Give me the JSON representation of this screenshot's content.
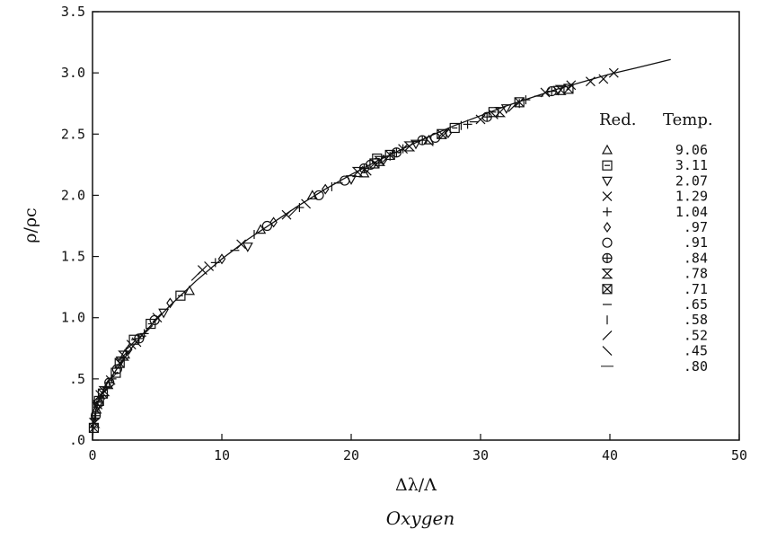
{
  "chart_data": {
    "type": "scatter",
    "title": "",
    "caption": "Oxygen",
    "xlabel": "Δλ/Λ",
    "ylabel": "ρ/ρc",
    "xlim": [
      0,
      50
    ],
    "ylim": [
      0,
      3.5
    ],
    "x_ticks": [
      "0",
      "10",
      "20",
      "30",
      "40",
      "50"
    ],
    "y_ticks": [
      ".0",
      ".5",
      "1.0",
      "1.5",
      "2.0",
      "2.5",
      "3.0",
      "3.5"
    ],
    "grid": false,
    "legend_position": "right",
    "legend_title": [
      "Red.",
      "Temp."
    ],
    "curve": {
      "label": ".80",
      "x": [
        0,
        0.1,
        0.2,
        0.4,
        0.7,
        1,
        1.5,
        2,
        3,
        4,
        5,
        6,
        8,
        10,
        12,
        14,
        16,
        18,
        20,
        22,
        24,
        26,
        28,
        30,
        32,
        34,
        36,
        38,
        40,
        42,
        44.7
      ],
      "y": [
        0,
        0.15,
        0.22,
        0.3,
        0.38,
        0.44,
        0.52,
        0.6,
        0.75,
        0.88,
        0.99,
        1.1,
        1.3,
        1.48,
        1.64,
        1.78,
        1.92,
        2.05,
        2.17,
        2.28,
        2.38,
        2.48,
        2.57,
        2.65,
        2.73,
        2.8,
        2.87,
        2.93,
        2.99,
        3.04,
        3.11
      ]
    },
    "series": [
      {
        "name": "9.06",
        "symbol": "triangle-up",
        "x": [
          0.3,
          1.2,
          2.5,
          7.5,
          13,
          17,
          21,
          26
        ],
        "y": [
          0.25,
          0.45,
          0.7,
          1.22,
          1.72,
          2.0,
          2.18,
          2.45
        ]
      },
      {
        "name": "3.11",
        "symbol": "square",
        "x": [
          0.5,
          1.8,
          3.2,
          4.5,
          6.8,
          22,
          28,
          31
        ],
        "y": [
          0.32,
          0.55,
          0.82,
          0.95,
          1.18,
          2.3,
          2.55,
          2.68
        ]
      },
      {
        "name": "2.07",
        "symbol": "triangle-down",
        "x": [
          0.4,
          2.2,
          5.5,
          12,
          20,
          25,
          32,
          36
        ],
        "y": [
          0.28,
          0.65,
          1.04,
          1.58,
          2.13,
          2.42,
          2.71,
          2.86
        ]
      },
      {
        "name": "1.29",
        "symbol": "cross",
        "x": [
          0.6,
          3,
          5,
          8.5,
          11.5,
          15,
          24,
          30,
          35,
          37,
          38.5,
          39.5,
          40.3
        ],
        "y": [
          0.37,
          0.78,
          1.0,
          1.39,
          1.6,
          1.84,
          2.38,
          2.62,
          2.84,
          2.9,
          2.93,
          2.95,
          3.0
        ]
      },
      {
        "name": "1.04",
        "symbol": "plus",
        "x": [
          0.2,
          1.5,
          4,
          9.5,
          16,
          23,
          29,
          33.5
        ],
        "y": [
          0.18,
          0.5,
          0.87,
          1.45,
          1.9,
          2.32,
          2.58,
          2.78
        ]
      },
      {
        "name": ".97",
        "symbol": "diamond",
        "x": [
          0.35,
          2.8,
          6,
          10,
          14,
          18,
          22.5,
          27.5
        ],
        "y": [
          0.27,
          0.74,
          1.12,
          1.48,
          1.78,
          2.05,
          2.29,
          2.51
        ]
      },
      {
        "name": ".91",
        "symbol": "circle",
        "x": [
          0.45,
          1.9,
          4.8,
          13.5,
          17.5,
          19.5,
          21.5,
          26.5
        ],
        "y": [
          0.3,
          0.58,
          0.98,
          1.75,
          2.0,
          2.12,
          2.25,
          2.47
        ]
      },
      {
        "name": ".84",
        "symbol": "circle-plus",
        "x": [
          0.25,
          1.3,
          3.6,
          21,
          23.5,
          25.5,
          30.5,
          35.5
        ],
        "y": [
          0.2,
          0.47,
          0.83,
          2.22,
          2.35,
          2.45,
          2.64,
          2.85
        ]
      },
      {
        "name": ".78",
        "symbol": "hourglass",
        "x": [
          0.15,
          0.9,
          2.4,
          20.5,
          22.2,
          24.5,
          31.5,
          36.2
        ],
        "y": [
          0.14,
          0.4,
          0.69,
          2.19,
          2.28,
          2.4,
          2.68,
          2.86
        ]
      },
      {
        "name": ".71",
        "symbol": "bowtie",
        "x": [
          0.1,
          0.8,
          2.1,
          21.8,
          23,
          27,
          33,
          36.8
        ],
        "y": [
          0.1,
          0.38,
          0.63,
          2.26,
          2.33,
          2.5,
          2.76,
          2.87
        ]
      },
      {
        "name": ".65",
        "symbol": "h-dash",
        "x": [
          0.3,
          1.1,
          3.8,
          11,
          19,
          25,
          29.5,
          34.5
        ],
        "y": [
          0.22,
          0.43,
          0.85,
          1.55,
          2.1,
          2.44,
          2.6,
          2.81
        ]
      },
      {
        "name": ".58",
        "symbol": "v-dash",
        "x": [
          0.2,
          0.7,
          2.6,
          12.5,
          18.5,
          24,
          28.5,
          33
        ],
        "y": [
          0.16,
          0.36,
          0.72,
          1.68,
          2.07,
          2.38,
          2.57,
          2.75
        ]
      },
      {
        "name": ".52",
        "symbol": "slash",
        "x": [
          0.5,
          1.6,
          4.3,
          8,
          15.5,
          22.8,
          27.2,
          32.5
        ],
        "y": [
          0.33,
          0.52,
          0.9,
          1.34,
          1.86,
          2.31,
          2.5,
          2.72
        ]
      },
      {
        "name": ".45",
        "symbol": "backslash",
        "x": [
          0.4,
          1.4,
          3.4,
          9,
          16.5,
          21.2,
          26,
          31
        ],
        "y": [
          0.29,
          0.49,
          0.8,
          1.42,
          1.93,
          2.2,
          2.44,
          2.66
        ]
      }
    ]
  }
}
